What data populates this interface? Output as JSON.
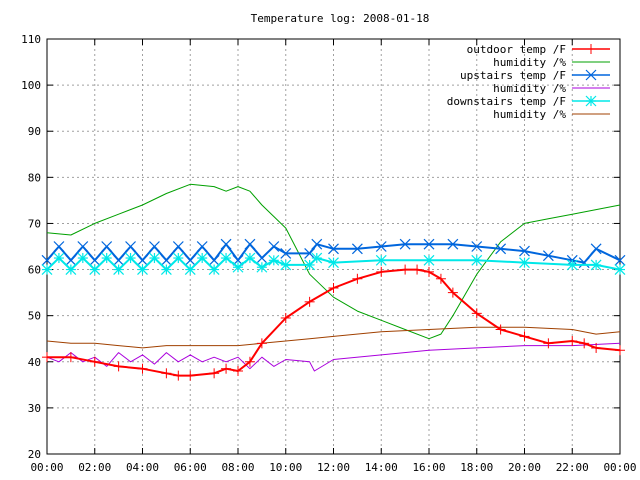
{
  "chart_data": {
    "type": "line",
    "title": "Temperature log: 2008-01-18",
    "xlabel": "",
    "ylabel": "",
    "ylim": [
      20,
      110
    ],
    "yticks": [
      20,
      30,
      40,
      50,
      60,
      70,
      80,
      90,
      100,
      110
    ],
    "xlim": [
      0,
      24
    ],
    "xticks": [
      0,
      2,
      4,
      6,
      8,
      10,
      12,
      14,
      16,
      18,
      20,
      22,
      24
    ],
    "xtick_labels": [
      "00:00",
      "02:00",
      "04:00",
      "06:00",
      "08:00",
      "10:00",
      "12:00",
      "14:00",
      "16:00",
      "18:00",
      "20:00",
      "22:00",
      "00:00"
    ],
    "grid": true,
    "legend_position": "top-right",
    "series": [
      {
        "name": "outdoor temp /F",
        "color": "#ff0000",
        "marker": "plus",
        "x": [
          0,
          1,
          2,
          3,
          4,
          5,
          5.5,
          6,
          7,
          7.5,
          8,
          8.5,
          9,
          10,
          11,
          12,
          13,
          14,
          15,
          15.5,
          16,
          16.5,
          17,
          18,
          19,
          20,
          21,
          22,
          22.5,
          23,
          24
        ],
        "y": [
          41,
          41,
          40,
          39,
          38.5,
          37.5,
          37,
          37,
          37.5,
          38.5,
          38,
          40,
          44,
          49.5,
          53,
          56,
          58,
          59.5,
          60,
          60,
          59.5,
          58,
          55,
          50.5,
          47,
          45.5,
          44,
          44.5,
          44,
          43,
          42.5
        ]
      },
      {
        "name": "humidity /%",
        "color": "#00a000",
        "marker": "none",
        "x": [
          0,
          1,
          2,
          3,
          4,
          5,
          6,
          7,
          7.5,
          8,
          8.5,
          9,
          10,
          11,
          12,
          13,
          14,
          15,
          16,
          16.5,
          17,
          18,
          19,
          20,
          21,
          22,
          23,
          24
        ],
        "y": [
          68,
          67.5,
          70,
          72,
          74,
          76.5,
          78.5,
          78,
          77,
          78,
          77,
          74,
          69,
          59,
          54,
          51,
          49,
          47,
          45,
          46,
          50,
          59,
          66,
          70,
          71,
          72,
          73,
          74
        ]
      },
      {
        "name": "upstairs temp /F",
        "color": "#0066dd",
        "marker": "cross",
        "x": [
          0,
          0.5,
          1,
          1.5,
          2,
          2.5,
          3,
          3.5,
          4,
          4.5,
          5,
          5.5,
          6,
          6.5,
          7,
          7.5,
          8,
          8.5,
          9,
          9.5,
          10,
          11,
          11.3,
          12,
          13,
          14,
          15,
          16,
          17,
          18,
          19,
          20,
          21,
          22,
          22.5,
          23,
          24
        ],
        "y": [
          62,
          65,
          62,
          65,
          62,
          65,
          62,
          65,
          62,
          65,
          62,
          65,
          62,
          65,
          62,
          65.5,
          62,
          65.5,
          62.5,
          65,
          63.5,
          63.5,
          65.5,
          64.5,
          64.5,
          65,
          65.5,
          65.5,
          65.5,
          65,
          64.5,
          64,
          63,
          62,
          61.5,
          64.5,
          62
        ]
      },
      {
        "name": "humidity /%",
        "color": "#aa00dd",
        "marker": "none",
        "x": [
          0,
          0.5,
          1,
          1.5,
          2,
          2.5,
          3,
          3.5,
          4,
          4.5,
          5,
          5.5,
          6,
          6.5,
          7,
          7.5,
          8,
          8.5,
          9,
          9.5,
          10,
          11,
          11.2,
          12,
          14,
          16,
          18,
          20,
          22,
          24
        ],
        "y": [
          41,
          40,
          42,
          40,
          41,
          39,
          42,
          40,
          41.5,
          39.5,
          42,
          40,
          41.5,
          40,
          41,
          40,
          41,
          38.5,
          41,
          39,
          40.5,
          40,
          38,
          40.5,
          41.5,
          42.5,
          43,
          43.5,
          43.5,
          44
        ]
      },
      {
        "name": "downstairs temp /F",
        "color": "#00e8e8",
        "marker": "star",
        "x": [
          0,
          0.5,
          1,
          1.5,
          2,
          2.5,
          3,
          3.5,
          4,
          4.5,
          5,
          5.5,
          6,
          6.5,
          7,
          7.5,
          8,
          8.5,
          9,
          9.5,
          10,
          11,
          11.3,
          12,
          14,
          16,
          18,
          20,
          22,
          23,
          24
        ],
        "y": [
          60,
          62.5,
          60,
          62.5,
          60,
          62.5,
          60,
          62.5,
          60,
          62.5,
          60,
          62.5,
          60,
          62.5,
          60,
          62.5,
          60.5,
          62.5,
          60.5,
          62,
          61,
          61,
          62.5,
          61.5,
          62,
          62,
          62,
          61.5,
          61,
          61,
          60
        ]
      },
      {
        "name": "humidity /%",
        "color": "#a04000",
        "marker": "none",
        "x": [
          0,
          1,
          2,
          3,
          4,
          5,
          6,
          7,
          8,
          9,
          10,
          11,
          12,
          14,
          16,
          18,
          20,
          22,
          23,
          24
        ],
        "y": [
          44.5,
          44,
          44,
          43.5,
          43,
          43.5,
          43.5,
          43.5,
          43.5,
          44,
          44.5,
          45,
          45.5,
          46.5,
          47,
          47.5,
          47.5,
          47,
          46,
          46.5
        ]
      }
    ]
  }
}
